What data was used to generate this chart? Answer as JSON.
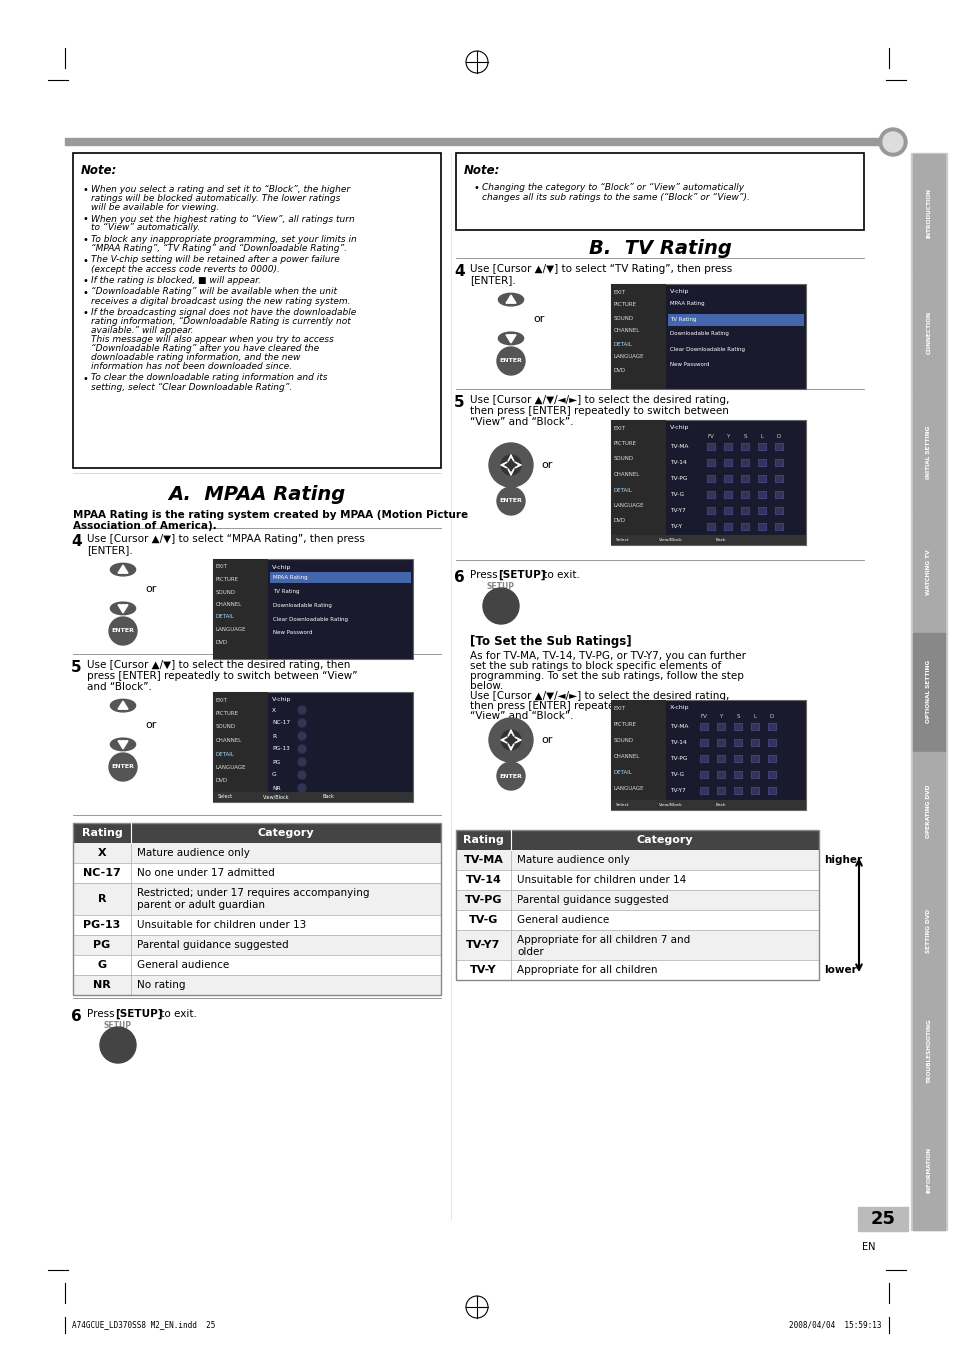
{
  "page_width": 9.54,
  "page_height": 13.51,
  "bg_color": "#ffffff",
  "page_number": "25",
  "footer_left": "A74GCUE_LD370SS8 M2_EN.indd  25",
  "footer_right": "2008/04/04  15:59:13",
  "tab_labels": [
    "INTRODUCTION",
    "CONNECTION",
    "INITIAL SETTING",
    "WATCHING TV",
    "OPTIONAL SETTING",
    "OPERATING DVD",
    "SETTING DVD",
    "TROUBLESHOOTING",
    "INFORMATION"
  ],
  "highlighted_tab": 4,
  "section_a_title": "A.  MPAA Rating",
  "section_b_title": "B.  TV Rating",
  "note1_bullets": [
    "When you select a rating and set it to “Block”, the higher\nratings will be blocked automatically. The lower ratings\nwill be available for viewing.",
    "When you set the highest rating to “View”, all ratings turn\nto “View” automatically.",
    "To block any inappropriate programming, set your limits in\n“MPAA Rating”, “TV Rating” and “Downloadable Rating”.",
    "The V-chip setting will be retained after a power failure\n(except the access code reverts to 0000).",
    "If the rating is blocked, ■ will appear.",
    "“Downloadable Rating” will be available when the unit\nreceives a digital broadcast using the new rating system.",
    "If the broadcasting signal does not have the downloadable\nrating information, “Downloadable Rating is currently not\navailable.” will appear.\nThis message will also appear when you try to access\n“Downloadable Rating” after you have cleared the\ndownloadable rating information, and the new\ninformation has not been downloaded since.",
    "To clear the downloadable rating information and its\nsetting, select “Clear Downloadable Rating”."
  ],
  "mpaa_intro": "MPAA Rating is the rating system created by MPAA (Motion Picture\nAssociation of America).",
  "mpaa_step4": "Use [Cursor ▲/▼] to select “MPAA Rating”, then press\n[ENTER].",
  "mpaa_step5_a": "Use [Cursor ▲/▼] to select the desired rating, then",
  "mpaa_step5_b": "press [ENTER] repeatedly to switch between “View”",
  "mpaa_step5_c": "and “Block”.",
  "mpaa_step6": "Press [SETUP] to exit.",
  "tv_note": "Changing the category to “Block” or “View” automatically\nchanges all its sub ratings to the same (“Block” or “View”).",
  "tv_step4": "Use [Cursor ▲/▼] to select “TV Rating”, then press\n[ENTER].",
  "tv_step5_a": "Use [Cursor ▲/▼/◄/►] to select the desired rating,",
  "tv_step5_b": "then press [ENTER] repeatedly to switch between",
  "tv_step5_c": "“View” and “Block”.",
  "tv_step6": "Press [SETUP] to exit.",
  "mpaa_table_rows": [
    [
      "X",
      "Mature audience only"
    ],
    [
      "NC-17",
      "No one under 17 admitted"
    ],
    [
      "R",
      "Restricted; under 17 requires accompanying\nparent or adult guardian"
    ],
    [
      "PG-13",
      "Unsuitable for children under 13"
    ],
    [
      "PG",
      "Parental guidance suggested"
    ],
    [
      "G",
      "General audience"
    ],
    [
      "NR",
      "No rating"
    ]
  ],
  "tv_table_rows": [
    [
      "TV-MA",
      "Mature audience only",
      "higher"
    ],
    [
      "TV-14",
      "Unsuitable for children under 14",
      ""
    ],
    [
      "TV-PG",
      "Parental guidance suggested",
      ""
    ],
    [
      "TV-G",
      "General audience",
      ""
    ],
    [
      "TV-Y7",
      "Appropriate for all children 7 and\nolder",
      ""
    ],
    [
      "TV-Y",
      "Appropriate for all children",
      "lower"
    ]
  ],
  "sub_ratings_title": "[To Set the Sub Ratings]",
  "sub_ratings_text1": "As for TV-MA, TV-14, TV-PG, or TV-Y7, you can further",
  "sub_ratings_text2": "set the sub ratings to block specific elements of",
  "sub_ratings_text3": "programming. To set the sub ratings, follow the step",
  "sub_ratings_text4": "below.",
  "sub_ratings_text5": "Use [Cursor ▲/▼/◄/►] to select the desired rating,",
  "sub_ratings_text6": "then press [ENTER] repeatedly to switch between",
  "sub_ratings_text7": "“View” and “Block”.",
  "vcr_menu": [
    "EXIT",
    "PICTURE",
    "SOUND",
    "CHANNEL",
    "DETAIL",
    "LANGUAGE",
    "DVD"
  ],
  "vchip_menu_A": [
    "MPAA Rating",
    "TV Rating",
    "Downloadable Rating",
    "Clear Downloadable Rating",
    "New Password"
  ],
  "mpaa_ratings_list": [
    "X",
    "NC-17",
    "R",
    "PG-13",
    "PG",
    "G",
    "NR"
  ],
  "tv_ratings_list": [
    "TV-MA",
    "TV-14",
    "TV-PG",
    "TV-G",
    "TV-Y7",
    "TV-Y"
  ],
  "tv_cols": [
    "FV",
    "Y",
    "S",
    "L",
    "D"
  ]
}
